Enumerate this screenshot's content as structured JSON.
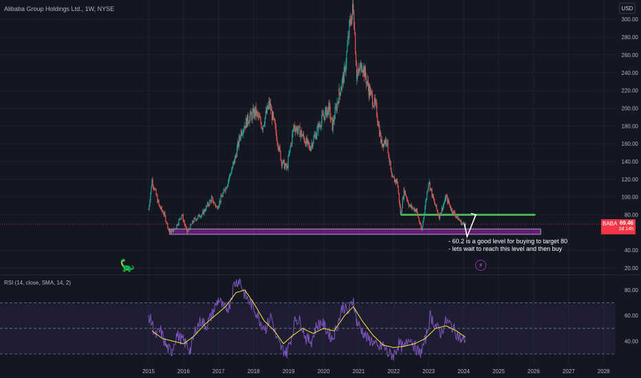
{
  "header": {
    "title": "Alibaba Group Holdings Ltd., 1W, NYSE",
    "currency": "USD"
  },
  "price_tag": {
    "symbol": "BABA",
    "last": "69.46",
    "countdown": "2d 14h"
  },
  "rsi_label": "RSI (14, close, SMA, 14, 2)",
  "annotation": [
    "- 60.2 is a good level for buying to target 80",
    "- lets wait to reach this level and then buy"
  ],
  "icons": {
    "logo": "dinosaur-icon",
    "event": "lightning-icon"
  },
  "colors": {
    "background": "#131722",
    "up": "#26a69a",
    "down": "#ef5350",
    "support_zone": "#9c27b0",
    "target_line": "#4caf50",
    "price_line": "#f23645",
    "rsi_line": "#7e57c2",
    "rsi_ma": "#ffeb3b"
  },
  "chart_data": [
    {
      "type": "candlestick",
      "title": "Alibaba Group Holdings Ltd., 1W, NYSE",
      "x_ticks": [
        "2015",
        "2016",
        "2017",
        "2018",
        "2019",
        "2020",
        "2021",
        "2022",
        "2023",
        "2024",
        "2025",
        "2026",
        "2027",
        "2028"
      ],
      "y_ticks": [
        "300.00",
        "280.00",
        "260.00",
        "240.00",
        "220.00",
        "200.00",
        "180.00",
        "160.00",
        "140.00",
        "120.00",
        "100.00",
        "80.00",
        "40.00",
        "20.00"
      ],
      "ylim": [
        15,
        320
      ],
      "series": [
        {
          "points": [
            [
              2015.0,
              86
            ],
            [
              2015.1,
              119
            ],
            [
              2015.3,
              90
            ],
            [
              2015.45,
              80
            ],
            [
              2015.6,
              60
            ],
            [
              2015.75,
              64
            ],
            [
              2015.95,
              80
            ],
            [
              2016.1,
              60
            ],
            [
              2016.3,
              74
            ],
            [
              2016.55,
              82
            ],
            [
              2016.8,
              98
            ],
            [
              2016.95,
              88
            ],
            [
              2017.2,
              110
            ],
            [
              2017.45,
              140
            ],
            [
              2017.65,
              175
            ],
            [
              2017.85,
              188
            ],
            [
              2018.05,
              196
            ],
            [
              2018.25,
              180
            ],
            [
              2018.45,
              205
            ],
            [
              2018.6,
              180
            ],
            [
              2018.8,
              140
            ],
            [
              2018.95,
              132
            ],
            [
              2019.15,
              180
            ],
            [
              2019.35,
              172
            ],
            [
              2019.6,
              155
            ],
            [
              2019.85,
              178
            ],
            [
              2019.95,
              188
            ],
            [
              2020.15,
              200
            ],
            [
              2020.25,
              180
            ],
            [
              2020.45,
              218
            ],
            [
              2020.6,
              240
            ],
            [
              2020.75,
              295
            ],
            [
              2020.85,
              315
            ],
            [
              2020.95,
              235
            ],
            [
              2021.1,
              250
            ],
            [
              2021.3,
              220
            ],
            [
              2021.5,
              200
            ],
            [
              2021.65,
              160
            ],
            [
              2021.8,
              165
            ],
            [
              2021.95,
              120
            ],
            [
              2022.1,
              118
            ],
            [
              2022.2,
              80
            ],
            [
              2022.3,
              108
            ],
            [
              2022.45,
              90
            ],
            [
              2022.65,
              85
            ],
            [
              2022.8,
              62
            ],
            [
              2023.0,
              118
            ],
            [
              2023.15,
              95
            ],
            [
              2023.3,
              78
            ],
            [
              2023.5,
              100
            ],
            [
              2023.65,
              86
            ],
            [
              2023.8,
              78
            ],
            [
              2023.95,
              70
            ],
            [
              2024.05,
              69.46
            ]
          ]
        }
      ],
      "levels": {
        "support_zone": [
          58,
          64
        ],
        "buy_level": 60.2,
        "target": 80,
        "last_price": 69.46
      },
      "projection": [
        [
          2024.1,
          60
        ],
        [
          2024.35,
          80
        ]
      ]
    },
    {
      "type": "line",
      "title": "RSI (14, close, SMA, 14, 2)",
      "y_ticks": [
        "80.00",
        "60.00",
        "40.00"
      ],
      "ylim": [
        25,
        92
      ],
      "bands": [
        30,
        50,
        70
      ],
      "series": [
        {
          "name": "RSI",
          "points": [
            [
              2015.0,
              60
            ],
            [
              2015.1,
              54
            ],
            [
              2015.2,
              44
            ],
            [
              2015.35,
              48
            ],
            [
              2015.5,
              36
            ],
            [
              2015.65,
              31
            ],
            [
              2015.8,
              45
            ],
            [
              2016.0,
              40
            ],
            [
              2016.2,
              33
            ],
            [
              2016.35,
              50
            ],
            [
              2016.5,
              56
            ],
            [
              2016.65,
              52
            ],
            [
              2016.8,
              60
            ],
            [
              2017.0,
              73
            ],
            [
              2017.15,
              65
            ],
            [
              2017.3,
              67
            ],
            [
              2017.45,
              85
            ],
            [
              2017.6,
              88
            ],
            [
              2017.75,
              76
            ],
            [
              2017.9,
              70
            ],
            [
              2018.05,
              64
            ],
            [
              2018.2,
              55
            ],
            [
              2018.35,
              50
            ],
            [
              2018.5,
              60
            ],
            [
              2018.65,
              42
            ],
            [
              2018.8,
              34
            ],
            [
              2018.95,
              31
            ],
            [
              2019.1,
              45
            ],
            [
              2019.2,
              58
            ],
            [
              2019.35,
              55
            ],
            [
              2019.5,
              42
            ],
            [
              2019.65,
              40
            ],
            [
              2019.8,
              52
            ],
            [
              2019.95,
              55
            ],
            [
              2020.1,
              48
            ],
            [
              2020.25,
              42
            ],
            [
              2020.4,
              53
            ],
            [
              2020.55,
              68
            ],
            [
              2020.7,
              62
            ],
            [
              2020.85,
              73
            ],
            [
              2020.95,
              55
            ],
            [
              2021.1,
              48
            ],
            [
              2021.25,
              42
            ],
            [
              2021.4,
              40
            ],
            [
              2021.55,
              34
            ],
            [
              2021.7,
              37
            ],
            [
              2021.85,
              30
            ],
            [
              2022.0,
              29
            ],
            [
              2022.15,
              38
            ],
            [
              2022.3,
              34
            ],
            [
              2022.45,
              44
            ],
            [
              2022.6,
              36
            ],
            [
              2022.75,
              30
            ],
            [
              2022.9,
              40
            ],
            [
              2023.05,
              60
            ],
            [
              2023.2,
              52
            ],
            [
              2023.35,
              46
            ],
            [
              2023.5,
              56
            ],
            [
              2023.65,
              52
            ],
            [
              2023.8,
              46
            ],
            [
              2023.95,
              40
            ],
            [
              2024.05,
              42
            ]
          ]
        },
        {
          "name": "MA",
          "points": [
            [
              2015.1,
              48
            ],
            [
              2015.4,
              42
            ],
            [
              2015.7,
              40
            ],
            [
              2016.0,
              38
            ],
            [
              2016.3,
              44
            ],
            [
              2016.6,
              53
            ],
            [
              2016.9,
              60
            ],
            [
              2017.2,
              67
            ],
            [
              2017.5,
              78
            ],
            [
              2017.75,
              80
            ],
            [
              2018.0,
              70
            ],
            [
              2018.3,
              56
            ],
            [
              2018.6,
              48
            ],
            [
              2018.85,
              38
            ],
            [
              2019.1,
              44
            ],
            [
              2019.4,
              50
            ],
            [
              2019.7,
              46
            ],
            [
              2020.0,
              50
            ],
            [
              2020.3,
              48
            ],
            [
              2020.6,
              60
            ],
            [
              2020.85,
              67
            ],
            [
              2021.1,
              56
            ],
            [
              2021.4,
              45
            ],
            [
              2021.7,
              37
            ],
            [
              2022.0,
              35
            ],
            [
              2022.3,
              36
            ],
            [
              2022.6,
              38
            ],
            [
              2022.9,
              42
            ],
            [
              2023.2,
              50
            ],
            [
              2023.5,
              52
            ],
            [
              2023.8,
              48
            ],
            [
              2024.05,
              43
            ]
          ]
        }
      ]
    }
  ]
}
